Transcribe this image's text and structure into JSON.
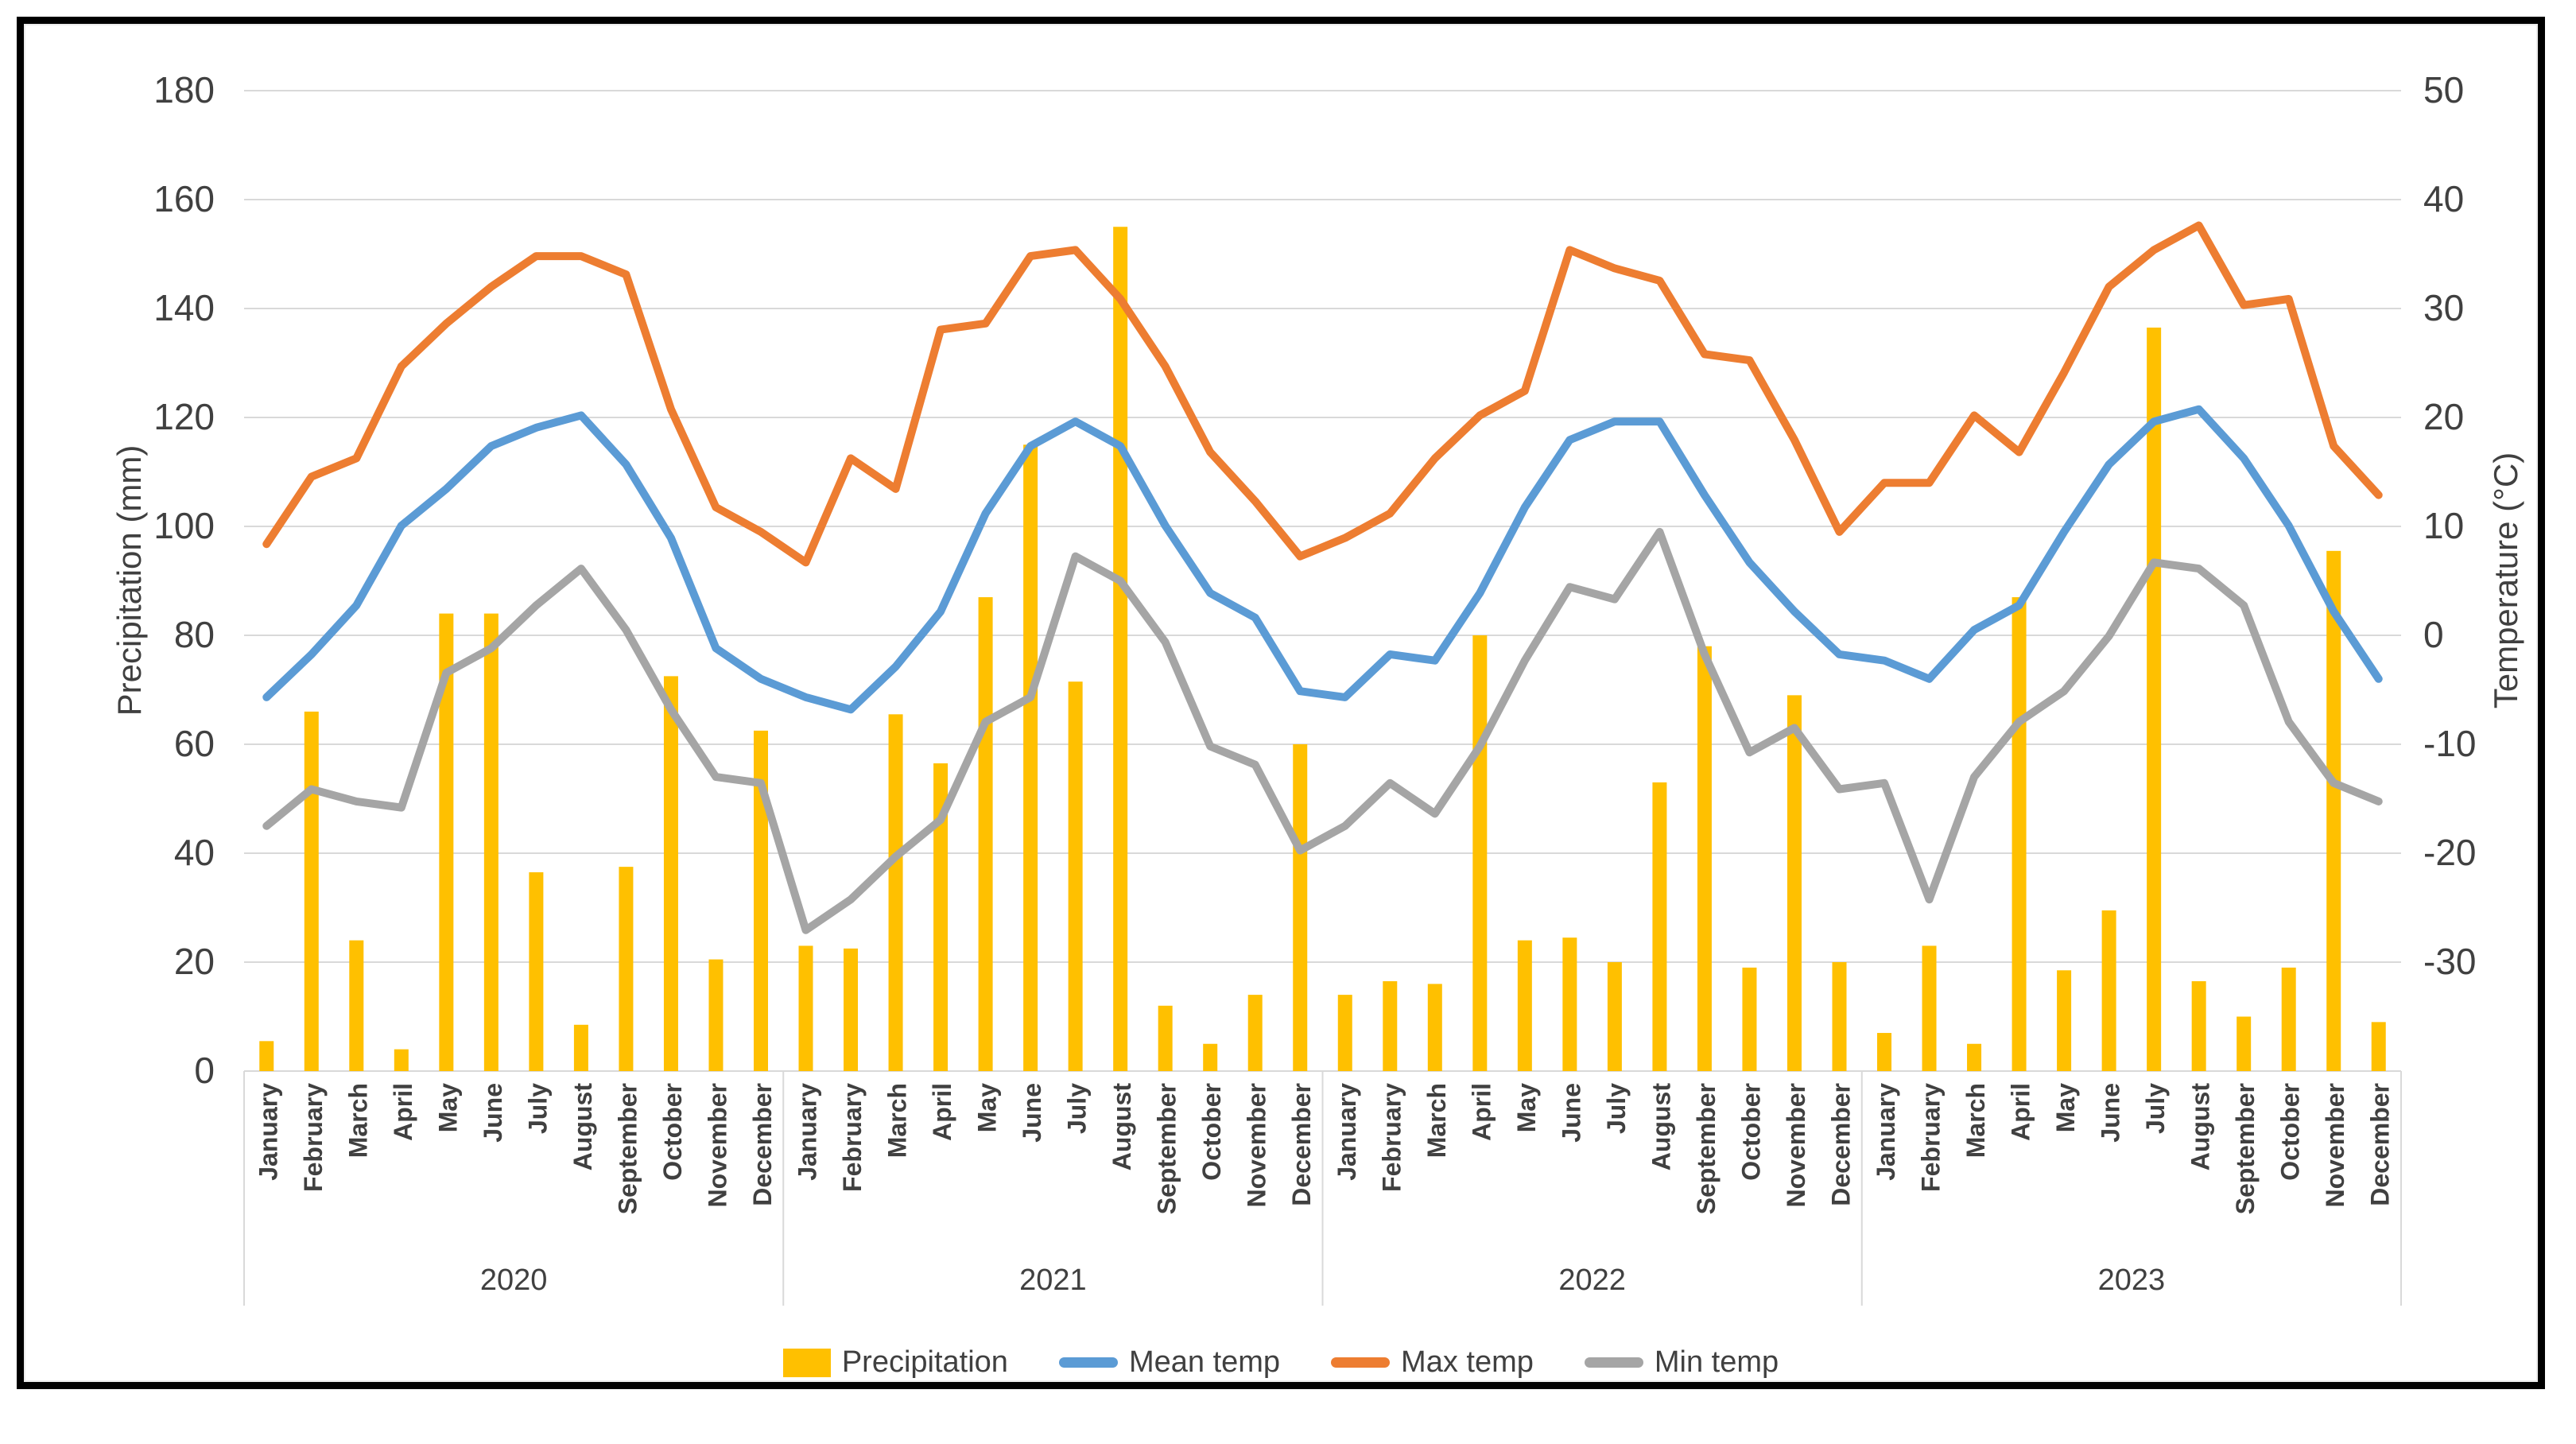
{
  "chart_data": {
    "type": "combo-bar-line",
    "left_axis": {
      "title": "Precipitation (mm)",
      "min": 0,
      "max": 180,
      "ticks": [
        180,
        160,
        140,
        120,
        100,
        80,
        60,
        40,
        20,
        0
      ]
    },
    "right_axis": {
      "title": "Temperature (°C)",
      "min": -30,
      "max": 50,
      "ticks": [
        50,
        40,
        30,
        20,
        10,
        0,
        -10,
        -20,
        -30
      ]
    },
    "years": [
      "2020",
      "2021",
      "2022",
      "2023"
    ],
    "months": [
      "January",
      "February",
      "March",
      "April",
      "May",
      "June",
      "July",
      "August",
      "September",
      "October",
      "November",
      "December"
    ],
    "grid": true,
    "legend_position": "bottom",
    "series": [
      {
        "name": "Precipitation",
        "type": "bar",
        "axis": "left",
        "color": "#FFC000",
        "values": [
          5.5,
          66,
          24,
          4,
          84,
          84,
          36.5,
          8.5,
          37.5,
          72.5,
          20.5,
          62.5,
          23,
          22.5,
          65.5,
          56.5,
          87,
          115,
          71.5,
          155,
          12,
          5,
          14,
          60,
          14,
          16.5,
          16,
          80,
          24,
          24.5,
          20,
          53,
          78,
          19,
          69,
          20,
          7,
          23,
          5,
          87,
          18.5,
          29.5,
          136.5,
          16.5,
          10,
          19,
          95.5,
          9
        ]
      },
      {
        "name": "Mean temp",
        "type": "line",
        "axis": "right",
        "color": "#5B9BD5",
        "values": [
          0.5,
          4,
          8,
          14.5,
          17.5,
          21,
          22.5,
          23.5,
          19.5,
          13.5,
          4.5,
          2,
          0.5,
          -0.5,
          3,
          7.5,
          15.5,
          21,
          23,
          21,
          14.5,
          9,
          7,
          1,
          0.5,
          4,
          3.5,
          9,
          16,
          21.5,
          23,
          23,
          17,
          11.5,
          7.5,
          4,
          3.5,
          2,
          6,
          8,
          14,
          19.5,
          23,
          24,
          20,
          14.5,
          7.5,
          2
        ]
      },
      {
        "name": "Max temp",
        "type": "line",
        "axis": "right",
        "color": "#ED7D31",
        "values": [
          13,
          18.5,
          20,
          27.5,
          31,
          34,
          36.5,
          36.5,
          35,
          24,
          16,
          14,
          11.5,
          20,
          17.5,
          30.5,
          31,
          36.5,
          37,
          33,
          27.5,
          20.5,
          16.5,
          12,
          13.5,
          15.5,
          20,
          23.5,
          25.5,
          37,
          35.5,
          34.5,
          28.5,
          28,
          21.5,
          14,
          18,
          18,
          23.5,
          20.5,
          27,
          34,
          37,
          39,
          32.5,
          33,
          21,
          17
        ]
      },
      {
        "name": "Min temp",
        "type": "line",
        "axis": "right",
        "color": "#A5A5A5",
        "values": [
          -10,
          -7,
          -8,
          -8.5,
          2.5,
          4.5,
          8,
          11,
          6,
          -0.5,
          -6,
          -6.5,
          -18.5,
          -16,
          -12.5,
          -9.5,
          -1.5,
          0.5,
          12,
          10,
          5,
          -3.5,
          -5,
          -12,
          -10,
          -6.5,
          -9,
          -3.5,
          3.5,
          9.5,
          8.5,
          14,
          4,
          -4,
          -2,
          -7,
          -6.5,
          -16,
          -6,
          -1.5,
          1,
          5.5,
          11.5,
          11,
          8,
          -1.5,
          -6.5,
          -8
        ]
      }
    ]
  }
}
